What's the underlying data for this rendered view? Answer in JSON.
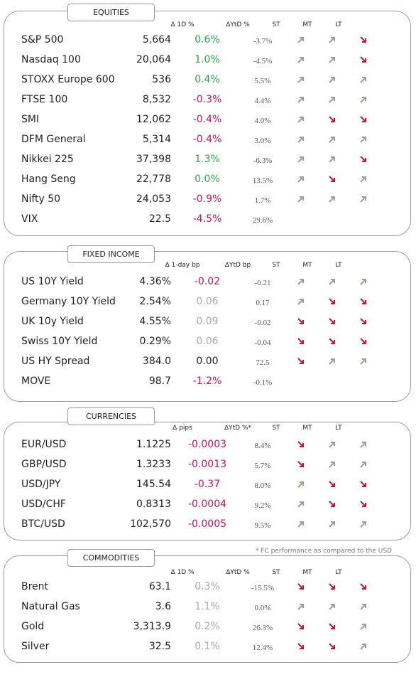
{
  "sections": [
    {
      "title": "EQUITIES",
      "headers": [
        "Δ 1D %",
        "ΔYtD %",
        "ST",
        "MT",
        "LT"
      ],
      "rows": [
        {
          "name": "S&P 500",
          "level": "5,664",
          "change": "0.6%",
          "change_color": "#2ea44f",
          "ytd": "-3.7%",
          "st": "up",
          "mt": "up",
          "lt": "down"
        },
        {
          "name": "Nasdaq 100",
          "level": "20,064",
          "change": "1.0%",
          "change_color": "#2ea44f",
          "ytd": "-4.5%",
          "st": "up",
          "mt": "up",
          "lt": "down"
        },
        {
          "name": "STOXX Europe 600",
          "level": "536",
          "change": "0.4%",
          "change_color": "#2ea44f",
          "ytd": "5.5%",
          "st": "up",
          "mt": "up",
          "lt": "up"
        },
        {
          "name": "FTSE 100",
          "level": "8,532",
          "change": "-0.3%",
          "change_color": "#cc1150",
          "ytd": "4.4%",
          "st": "up",
          "mt": "up",
          "lt": "up"
        },
        {
          "name": "SMI",
          "level": "12,062",
          "change": "-0.4%",
          "change_color": "#cc1150",
          "ytd": "4.0%",
          "st": "up",
          "mt": "down",
          "lt": "down"
        },
        {
          "name": "DFM General",
          "level": "5,314",
          "change": "-0.4%",
          "change_color": "#cc1150",
          "ytd": "3.0%",
          "st": "up",
          "mt": "up",
          "lt": "up"
        },
        {
          "name": "Nikkei 225",
          "level": "37,398",
          "change": "1.3%",
          "change_color": "#2ea44f",
          "ytd": "-6.3%",
          "st": "up",
          "mt": "up",
          "lt": "down"
        },
        {
          "name": "Hang Seng",
          "level": "22,778",
          "change": "0.0%",
          "change_color": "#2ea44f",
          "ytd": "13.5%",
          "st": "up",
          "mt": "down",
          "lt": "up"
        },
        {
          "name": "Nifty 50",
          "level": "24,053",
          "change": "-0.9%",
          "change_color": "#cc1150",
          "ytd": "1.7%",
          "st": "up",
          "mt": "up",
          "lt": "up"
        },
        {
          "name": "VIX",
          "level": "22.5",
          "change": "-4.5%",
          "change_color": "#cc1150",
          "ytd": "29.6%",
          "st": null,
          "mt": null,
          "lt": null
        }
      ]
    },
    {
      "title": "FIXED INCOME",
      "headers": [
        "Δ 1-day bp",
        "ΔYtD bp",
        "ST",
        "MT",
        "LT"
      ],
      "rows": [
        {
          "name": "US 10Y Yield",
          "level": "4.36%",
          "change": "-0.02",
          "change_color": "#cc1150",
          "ytd": "-0.21",
          "st": "up",
          "mt": "up",
          "lt": "up"
        },
        {
          "name": "Germany 10Y Yield",
          "level": "2.54%",
          "change": "0.06",
          "change_color": "#aaaaaa",
          "ytd": "0.17",
          "st": "up",
          "mt": "down",
          "lt": "down"
        },
        {
          "name": "UK 10y Yield",
          "level": "4.55%",
          "change": "0.09",
          "change_color": "#aaaaaa",
          "ytd": "-0.02",
          "st": "down",
          "mt": "down",
          "lt": "down"
        },
        {
          "name": "Swiss 10Y Yield",
          "level": "0.29%",
          "change": "0.06",
          "change_color": "#aaaaaa",
          "ytd": "-0.04",
          "st": "down",
          "mt": "down",
          "lt": "down"
        },
        {
          "name": "US HY Spread",
          "level": "384.0",
          "change": "0.00",
          "change_color": "#222222",
          "ytd": "72.5",
          "st": "down",
          "mt": "up",
          "lt": "up"
        },
        {
          "name": "MOVE",
          "level": "98.7",
          "change": "-1.2%",
          "change_color": "#cc1150",
          "ytd": "-0.1%",
          "st": null,
          "mt": null,
          "lt": null
        }
      ]
    },
    {
      "title": "CURRENCIES",
      "headers": [
        "Δ pips",
        "ΔYtD %*",
        "ST",
        "MT",
        "LT"
      ],
      "note": "* FC performance as compared to the USD",
      "rows": [
        {
          "name": "EUR/USD",
          "level": "1.1225",
          "change": "-0.0003",
          "change_color": "#cc1150",
          "ytd": "8.4%",
          "st": "down",
          "mt": "up",
          "lt": "up"
        },
        {
          "name": "GBP/USD",
          "level": "1.3233",
          "change": "-0.0013",
          "change_color": "#cc1150",
          "ytd": "5.7%",
          "st": "down",
          "mt": "up",
          "lt": "up"
        },
        {
          "name": "USD/JPY",
          "level": "145.54",
          "change": "-0.37",
          "change_color": "#cc1150",
          "ytd": "8.0%",
          "st": "up",
          "mt": "down",
          "lt": "down"
        },
        {
          "name": "USD/CHF",
          "level": "0.8313",
          "change": "-0.0004",
          "change_color": "#cc1150",
          "ytd": "9.2%",
          "st": "up",
          "mt": "down",
          "lt": "down"
        },
        {
          "name": "BTC/USD",
          "level": "102,570",
          "change": "-0.0005",
          "change_color": "#cc1150",
          "ytd": "9.5%",
          "st": "up",
          "mt": "up",
          "lt": "up"
        }
      ]
    },
    {
      "title": "COMMODITIES",
      "headers": [
        "Δ 1D %",
        "ΔYtD %",
        "ST",
        "MT",
        "LT"
      ],
      "rows": [
        {
          "name": "Brent",
          "level": "63.1",
          "change": "0.3%",
          "change_color": "#aaaaaa",
          "ytd": "-15.5%",
          "st": "down",
          "mt": "down",
          "lt": "down"
        },
        {
          "name": "Natural Gas",
          "level": "3.6",
          "change": "1.1%",
          "change_color": "#aaaaaa",
          "ytd": "0.0%",
          "st": "up",
          "mt": "up",
          "lt": "up"
        },
        {
          "name": "Gold",
          "level": "3,313.9",
          "change": "0.2%",
          "change_color": "#aaaaaa",
          "ytd": "26.3%",
          "st": "down",
          "mt": "down",
          "lt": "up"
        },
        {
          "name": "Silver",
          "level": "32.5",
          "change": "0.1%",
          "change_color": "#aaaaaa",
          "ytd": "12.4%",
          "st": "down",
          "mt": "down",
          "lt": "up"
        }
      ]
    }
  ]
}
